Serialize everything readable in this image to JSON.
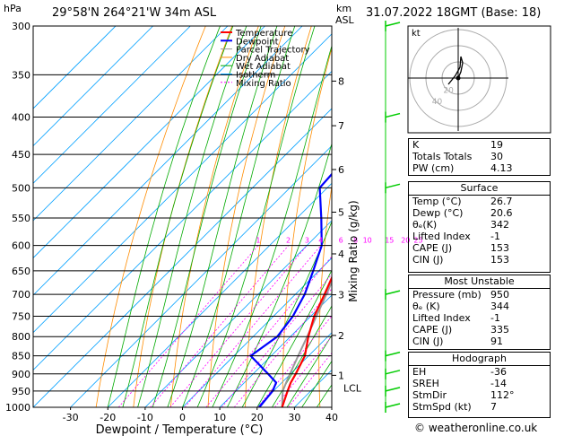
{
  "header": {
    "location": "29°58'N  264°21'W  34m  ASL",
    "datetime": "31.07.2022  18GMT  (Base: 18)",
    "hpa_label": "hPa",
    "km_label": "km",
    "asl_label": "ASL"
  },
  "legend": [
    "Temperature",
    "Dewpoint",
    "Parcel Trajectory",
    "Dry Adiabat",
    "Wet Adiabat",
    "Isotherm",
    "Mixing Ratio"
  ],
  "colors": {
    "temperature": "#ff0000",
    "dewpoint": "#0000ff",
    "parcel": "#999999",
    "dry_adiabat": "#ff8c00",
    "wet_adiabat": "#00aa00",
    "isotherm": "#00a0ff",
    "mixing_ratio": "#ff00ff",
    "wind": "#00cc00"
  },
  "chart_data": {
    "type": "skew-t",
    "xlabel": "Dewpoint / Temperature (°C)",
    "ylabel_right": "Mixing Ratio (g/kg)",
    "pressure_levels": [
      300,
      350,
      400,
      450,
      500,
      550,
      600,
      650,
      700,
      750,
      800,
      850,
      900,
      950,
      1000
    ],
    "temperature_ticks": [
      -30,
      -20,
      -10,
      0,
      10,
      20,
      30,
      40
    ],
    "height_ticks_km": [
      {
        "km": "1",
        "p": 904
      },
      {
        "km": "2",
        "p": 797
      },
      {
        "km": "3",
        "p": 701
      },
      {
        "km": "4",
        "p": 616
      },
      {
        "km": "5",
        "p": 540
      },
      {
        "km": "6",
        "p": 472
      },
      {
        "km": "7",
        "p": 411
      },
      {
        "km": "8",
        "p": 357
      }
    ],
    "lcl_label": "LCL",
    "lcl_p": 920,
    "mixing_ratio_labels": [
      "1",
      "2",
      "3",
      "4",
      "6",
      "8",
      "10",
      "15",
      "20",
      "25"
    ],
    "temperature": [
      [
        1000,
        26.7
      ],
      [
        950,
        23.8
      ],
      [
        925,
        22.4
      ],
      [
        900,
        21.4
      ],
      [
        850,
        19.0
      ],
      [
        800,
        14.8
      ],
      [
        750,
        10.9
      ],
      [
        700,
        7.8
      ],
      [
        650,
        4.3
      ],
      [
        600,
        0.1
      ],
      [
        550,
        -4.2
      ],
      [
        500,
        -8.4
      ],
      [
        450,
        -14.3
      ],
      [
        400,
        -21.2
      ],
      [
        350,
        -29.5
      ],
      [
        300,
        -38.5
      ]
    ],
    "dewpoint": [
      [
        1000,
        20.6
      ],
      [
        950,
        19.8
      ],
      [
        925,
        18.5
      ],
      [
        900,
        14.0
      ],
      [
        850,
        4.5
      ],
      [
        800,
        6.5
      ],
      [
        750,
        5.2
      ],
      [
        700,
        2.5
      ],
      [
        650,
        -1.5
      ],
      [
        600,
        -6.0
      ],
      [
        550,
        -13.5
      ],
      [
        500,
        -22.0
      ],
      [
        450,
        -23.0
      ],
      [
        400,
        -31.0
      ],
      [
        350,
        -40.0
      ],
      [
        300,
        -53.0
      ]
    ],
    "parcel": [
      [
        1000,
        26.7
      ],
      [
        950,
        22.5
      ],
      [
        920,
        20.9
      ],
      [
        850,
        17.2
      ],
      [
        800,
        14.5
      ],
      [
        750,
        11.5
      ],
      [
        700,
        8.3
      ],
      [
        650,
        4.8
      ],
      [
        600,
        1.0
      ],
      [
        550,
        -3.2
      ],
      [
        500,
        -8.0
      ],
      [
        450,
        -13.7
      ],
      [
        400,
        -20.5
      ],
      [
        350,
        -28.8
      ],
      [
        300,
        -38.8
      ]
    ]
  },
  "hodograph": {
    "unit_label": "kt",
    "ring_labels": [
      "20",
      "40"
    ]
  },
  "indices": [
    [
      "K",
      "19"
    ],
    [
      "Totals Totals",
      "30"
    ],
    [
      "PW (cm)",
      "4.13"
    ]
  ],
  "surface": {
    "title": "Surface",
    "rows": [
      [
        "Temp (°C)",
        "26.7"
      ],
      [
        "Dewp (°C)",
        "20.6"
      ],
      [
        "θₑ(K)",
        "342"
      ],
      [
        "Lifted Index",
        "-1"
      ],
      [
        "CAPE (J)",
        "153"
      ],
      [
        "CIN (J)",
        "153"
      ]
    ]
  },
  "most_unstable": {
    "title": "Most Unstable",
    "rows": [
      [
        "Pressure (mb)",
        "950"
      ],
      [
        "θₑ (K)",
        "344"
      ],
      [
        "Lifted Index",
        "-1"
      ],
      [
        "CAPE (J)",
        "335"
      ],
      [
        "CIN (J)",
        "91"
      ]
    ]
  },
  "hodo_table": {
    "title": "Hodograph",
    "rows": [
      [
        "EH",
        "-36"
      ],
      [
        "SREH",
        "-14"
      ],
      [
        "StmDir",
        "112°"
      ],
      [
        "StmSpd (kt)",
        "7"
      ]
    ]
  },
  "credit": "© weatheronline.co.uk"
}
